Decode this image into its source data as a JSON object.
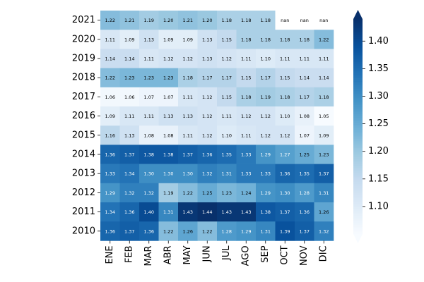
{
  "chart_data": {
    "type": "heatmap",
    "title": "",
    "xlabel": "",
    "ylabel": "",
    "columns": [
      "ENE",
      "FEB",
      "MAR",
      "ABR",
      "MAY",
      "JUN",
      "JUL",
      "AGO",
      "SEP",
      "OCT",
      "NOV",
      "DIC"
    ],
    "rows": [
      "2021",
      "2020",
      "2019",
      "2018",
      "2017",
      "2016",
      "2015",
      "2014",
      "2013",
      "2012",
      "2011",
      "2010"
    ],
    "values": [
      [
        1.22,
        1.21,
        1.19,
        1.2,
        1.21,
        1.2,
        1.18,
        1.18,
        1.18,
        null,
        null,
        null
      ],
      [
        1.11,
        1.09,
        1.13,
        1.09,
        1.09,
        1.13,
        1.15,
        1.18,
        1.18,
        1.18,
        1.18,
        1.22
      ],
      [
        1.14,
        1.14,
        1.11,
        1.12,
        1.12,
        1.13,
        1.12,
        1.11,
        1.1,
        1.11,
        1.11,
        1.11
      ],
      [
        1.22,
        1.23,
        1.23,
        1.23,
        1.18,
        1.17,
        1.17,
        1.15,
        1.17,
        1.15,
        1.14,
        1.14
      ],
      [
        1.06,
        1.06,
        1.07,
        1.07,
        1.11,
        1.12,
        1.15,
        1.18,
        1.19,
        1.18,
        1.17,
        1.18
      ],
      [
        1.09,
        1.11,
        1.11,
        1.13,
        1.13,
        1.12,
        1.11,
        1.12,
        1.12,
        1.1,
        1.08,
        1.05
      ],
      [
        1.16,
        1.13,
        1.08,
        1.08,
        1.11,
        1.12,
        1.1,
        1.11,
        1.12,
        1.12,
        1.07,
        1.09
      ],
      [
        1.36,
        1.37,
        1.38,
        1.38,
        1.37,
        1.36,
        1.35,
        1.33,
        1.29,
        1.27,
        1.25,
        1.23
      ],
      [
        1.33,
        1.34,
        1.3,
        1.3,
        1.3,
        1.32,
        1.31,
        1.33,
        1.33,
        1.36,
        1.35,
        1.37
      ],
      [
        1.29,
        1.32,
        1.32,
        1.19,
        1.22,
        1.25,
        1.23,
        1.24,
        1.29,
        1.3,
        1.28,
        1.31
      ],
      [
        1.34,
        1.36,
        1.4,
        1.31,
        1.43,
        1.44,
        1.43,
        1.43,
        1.38,
        1.37,
        1.36,
        1.26
      ],
      [
        1.36,
        1.37,
        1.36,
        1.22,
        1.26,
        1.22,
        1.28,
        1.29,
        1.31,
        1.39,
        1.37,
        1.32
      ]
    ],
    "missing_label": "nan",
    "colormap": "Blues",
    "vmin": 1.05,
    "vmax": 1.44,
    "colorbar": {
      "ticks": [
        1.1,
        1.15,
        1.2,
        1.25,
        1.3,
        1.35,
        1.4
      ],
      "tick_labels": [
        "1.10",
        "1.15",
        "1.20",
        "1.25",
        "1.30",
        "1.35",
        "1.40"
      ],
      "extend": "both",
      "placement": "right"
    }
  },
  "colors": {
    "missing_cell": "#ffffff",
    "text_dark": "#000000",
    "text_light": "#ffffff"
  }
}
